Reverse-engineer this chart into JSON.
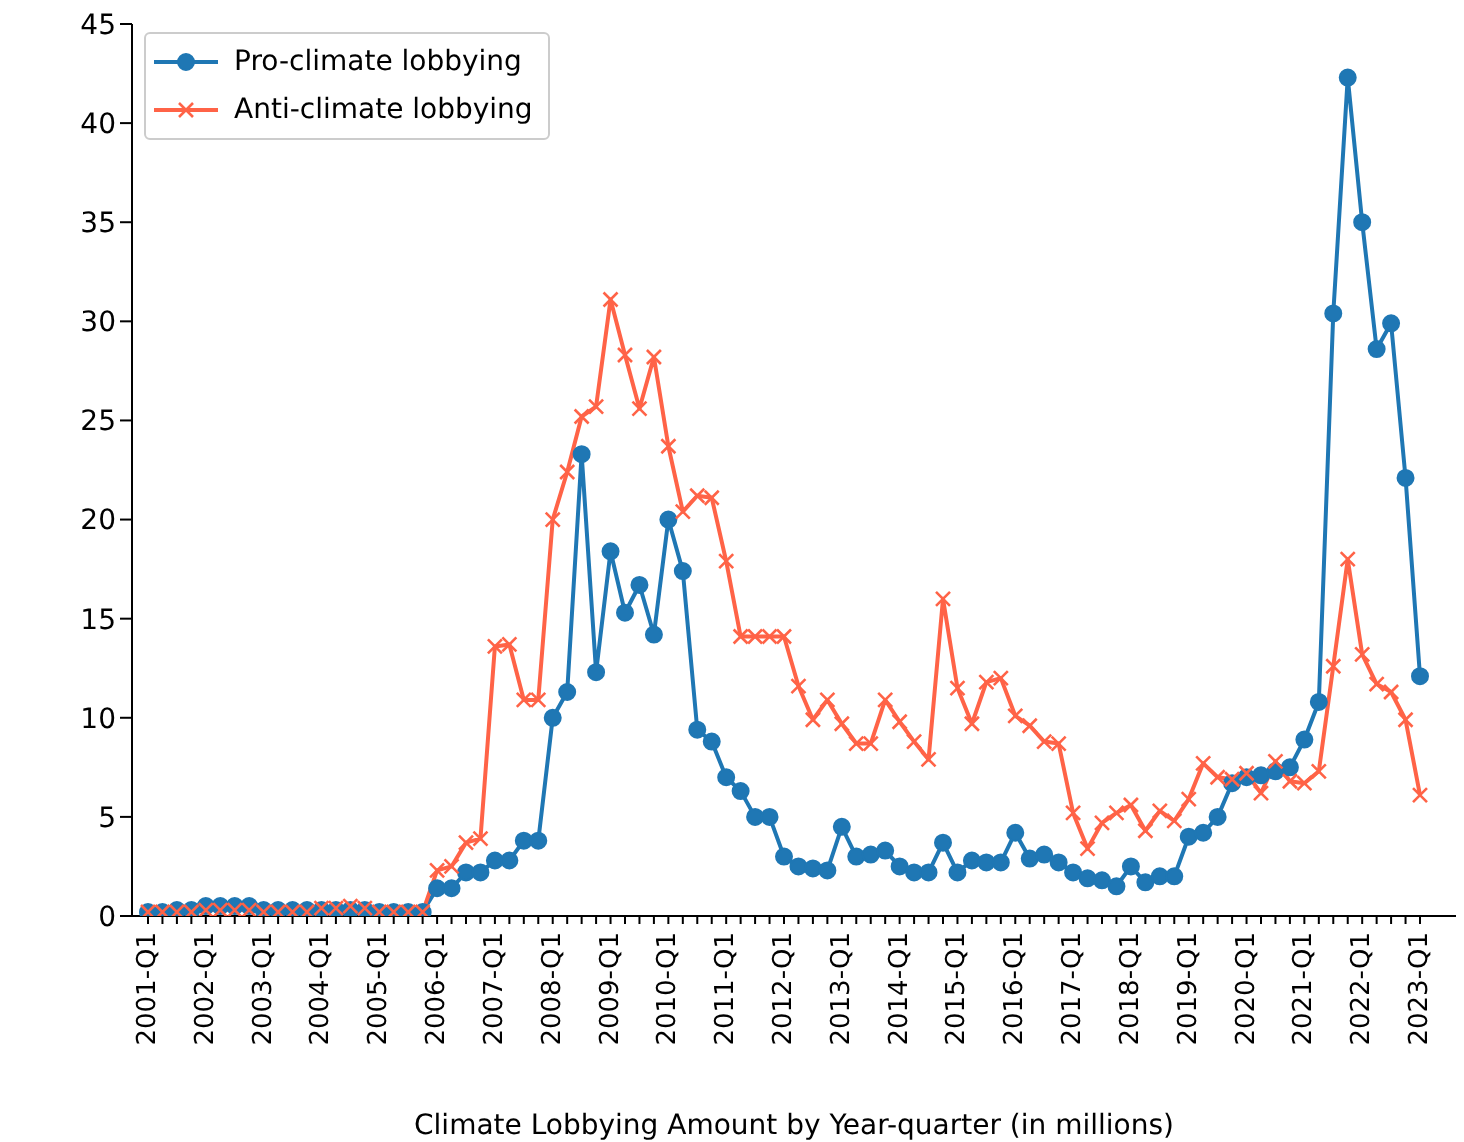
{
  "chart_data": {
    "type": "line",
    "xlabel": "Climate Lobbying Amount by Year-quarter (in millions)",
    "categories": [
      "2001-Q1",
      null,
      null,
      null,
      "2002-Q1",
      null,
      null,
      null,
      "2003-Q1",
      null,
      null,
      null,
      "2004-Q1",
      null,
      null,
      null,
      "2005-Q1",
      null,
      null,
      null,
      "2006-Q1",
      null,
      null,
      null,
      "2007-Q1",
      null,
      null,
      null,
      "2008-Q1",
      null,
      null,
      null,
      "2009-Q1",
      null,
      null,
      null,
      "2010-Q1",
      null,
      null,
      null,
      "2011-Q1",
      null,
      null,
      null,
      "2012-Q1",
      null,
      null,
      null,
      "2013-Q1",
      null,
      null,
      null,
      "2014-Q1",
      null,
      null,
      null,
      "2015-Q1",
      null,
      null,
      null,
      "2016-Q1",
      null,
      null,
      null,
      "2017-Q1",
      null,
      null,
      null,
      "2018-Q1",
      null,
      null,
      null,
      "2019-Q1",
      null,
      null,
      null,
      "2020-Q1",
      null,
      null,
      null,
      "2021-Q1",
      null,
      null,
      null,
      "2022-Q1",
      null,
      null,
      null,
      "2023-Q1"
    ],
    "series": [
      {
        "name": "Pro-climate lobbying",
        "color": "#1f77b4",
        "marker": "circle",
        "values": [
          0.2,
          0.2,
          0.3,
          0.3,
          0.5,
          0.5,
          0.5,
          0.5,
          0.3,
          0.3,
          0.3,
          0.3,
          0.3,
          0.3,
          0.3,
          0.3,
          0.2,
          0.2,
          0.2,
          0.2,
          1.4,
          1.4,
          2.2,
          2.2,
          2.8,
          2.8,
          3.8,
          3.8,
          10,
          11.3,
          23.3,
          12.3,
          18.4,
          15.3,
          16.7,
          14.2,
          20,
          17.4,
          9.4,
          8.8,
          7,
          6.3,
          5,
          5,
          3,
          2.5,
          2.4,
          2.3,
          4.5,
          3,
          3.1,
          3.3,
          2.5,
          2.2,
          2.2,
          3.7,
          2.2,
          2.8,
          2.7,
          2.7,
          4.2,
          2.9,
          3.1,
          2.7,
          2.2,
          1.9,
          1.8,
          1.5,
          2.5,
          1.7,
          2,
          2,
          4,
          4.2,
          5,
          6.7,
          7,
          7.1,
          7.3,
          7.5,
          8.9,
          10.8,
          30.4,
          42.3,
          35,
          28.6,
          29.9,
          22.1,
          12.1
        ]
      },
      {
        "name": "Anti-climate lobbying",
        "color": "#ff6347",
        "marker": "cross",
        "values": [
          0.2,
          0.2,
          0.2,
          0.2,
          0.3,
          0.3,
          0.3,
          0.3,
          0.2,
          0.2,
          0.2,
          0.2,
          0.4,
          0.4,
          0.5,
          0.4,
          0.2,
          0.2,
          0.2,
          0.2,
          2.3,
          2.5,
          3.7,
          3.9,
          13.6,
          13.7,
          10.9,
          10.9,
          20,
          22.4,
          25.2,
          25.7,
          31.1,
          28.3,
          25.6,
          28.2,
          23.7,
          20.4,
          21.2,
          21.1,
          17.9,
          14.1,
          14.1,
          14.1,
          14.1,
          11.6,
          9.9,
          10.9,
          9.7,
          8.7,
          8.7,
          10.9,
          9.8,
          8.8,
          7.9,
          16,
          11.5,
          9.7,
          11.8,
          12,
          10.1,
          9.6,
          8.8,
          8.7,
          5.2,
          3.4,
          4.7,
          5.2,
          5.6,
          4.3,
          5.3,
          4.8,
          5.9,
          7.7,
          7,
          6.9,
          7.2,
          6.2,
          7.8,
          6.8,
          6.7,
          7.3,
          12.6,
          18,
          13.2,
          11.7,
          11.3,
          9.9,
          6.1
        ]
      }
    ],
    "ylim": [
      0,
      45
    ],
    "yticks": [
      0,
      5,
      10,
      15,
      20,
      25,
      30,
      35,
      40,
      45
    ],
    "legend": "top left",
    "grid": false
  }
}
